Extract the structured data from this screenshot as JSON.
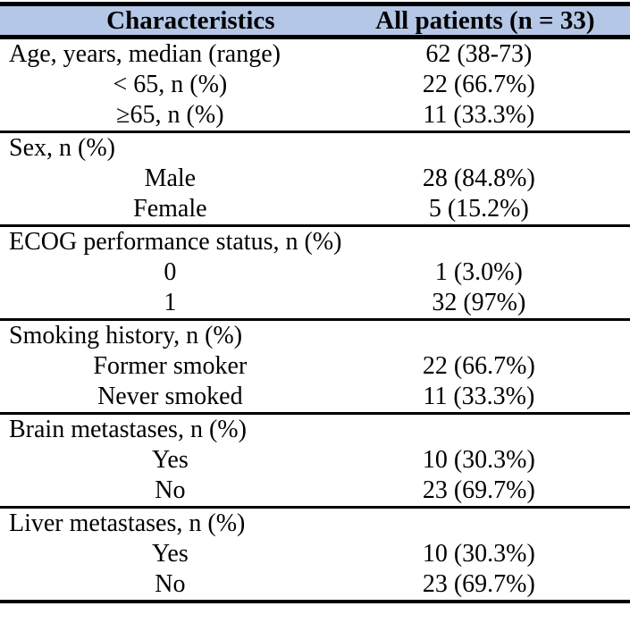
{
  "colors": {
    "header_bg": "#b5c7e6",
    "border": "#000000",
    "text": "#000000"
  },
  "header": {
    "col1": "Characteristics",
    "col2": "All patients (n = 33)"
  },
  "sections": [
    {
      "rows": [
        {
          "label": "Age, years, median (range)",
          "value": "62 (38-73)"
        },
        {
          "label": "< 65, n (%)",
          "value": "22 (66.7%)"
        },
        {
          "label": "≥65, n (%)",
          "value": "11 (33.3%)"
        }
      ]
    },
    {
      "rows": [
        {
          "label": "Sex, n (%)",
          "value": ""
        },
        {
          "label": "Male",
          "value": "28 (84.8%)"
        },
        {
          "label": "Female",
          "value": "5 (15.2%)"
        }
      ]
    },
    {
      "rows": [
        {
          "label": "ECOG performance status, n (%)",
          "value": ""
        },
        {
          "label": "0",
          "value": "1 (3.0%)"
        },
        {
          "label": "1",
          "value": "32 (97%)"
        }
      ]
    },
    {
      "rows": [
        {
          "label": "Smoking history, n (%)",
          "value": ""
        },
        {
          "label": "Former smoker",
          "value": "22 (66.7%)"
        },
        {
          "label": "Never smoked",
          "value": "11 (33.3%)"
        }
      ]
    },
    {
      "rows": [
        {
          "label": "Brain metastases, n (%)",
          "value": ""
        },
        {
          "label": "Yes",
          "value": "10 (30.3%)"
        },
        {
          "label": "No",
          "value": "23 (69.7%)"
        }
      ]
    },
    {
      "rows": [
        {
          "label": "Liver metastases, n (%)",
          "value": ""
        },
        {
          "label": "Yes",
          "value": "10 (30.3%)"
        },
        {
          "label": "No",
          "value": "23 (69.7%)"
        }
      ]
    }
  ]
}
